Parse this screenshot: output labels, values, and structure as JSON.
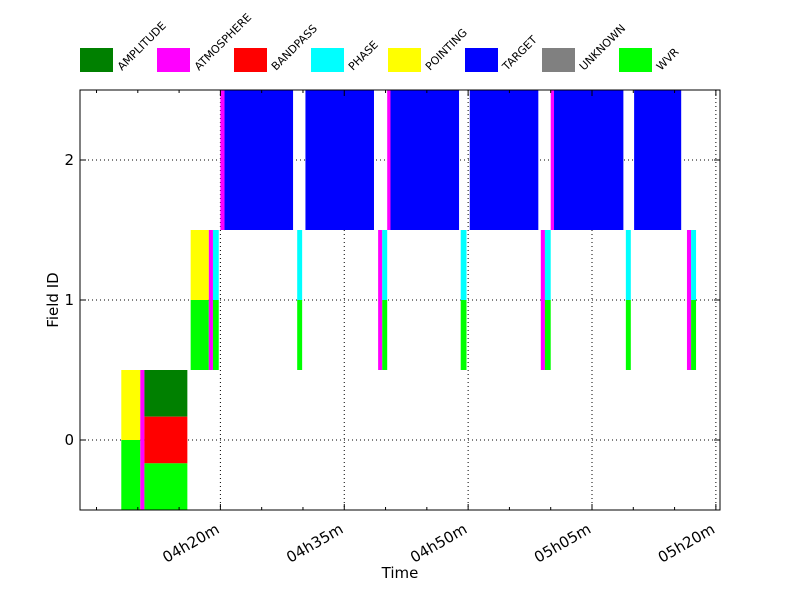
{
  "chart_data": {
    "type": "timeline",
    "xlabel": "Time",
    "ylabel": "Field ID",
    "x_unit": "minutes after 04h00m (UTC)",
    "xlim": [
      3.0,
      80.5
    ],
    "ylim": [
      -0.5,
      2.5
    ],
    "x_ticks": [
      {
        "value": 20,
        "label": "04h20m"
      },
      {
        "value": 35,
        "label": "04h35m"
      },
      {
        "value": 50,
        "label": "04h50m"
      },
      {
        "value": 65,
        "label": "05h05m"
      },
      {
        "value": 80,
        "label": "05h20m"
      }
    ],
    "y_ticks": [
      {
        "value": 0,
        "label": "0"
      },
      {
        "value": 1,
        "label": "1"
      },
      {
        "value": 2,
        "label": "2"
      }
    ],
    "grid": true,
    "legend_position": "top",
    "intents": [
      {
        "name": "AMPLITUDE",
        "color": "#008000"
      },
      {
        "name": "ATMOSPHERE",
        "color": "#ff00ff"
      },
      {
        "name": "BANDPASS",
        "color": "#ff0000"
      },
      {
        "name": "PHASE",
        "color": "#00ffff"
      },
      {
        "name": "POINTING",
        "color": "#ffff00"
      },
      {
        "name": "TARGET",
        "color": "#0000ff"
      },
      {
        "name": "UNKNOWN",
        "color": "#808080"
      },
      {
        "name": "WVR",
        "color": "#00ff00"
      }
    ],
    "scans": [
      {
        "field": 0,
        "start": 8.0,
        "end": 10.3,
        "intents": [
          "POINTING",
          "WVR"
        ]
      },
      {
        "field": 0,
        "start": 10.3,
        "end": 10.8,
        "intents": [
          "ATMOSPHERE"
        ]
      },
      {
        "field": 0,
        "start": 10.8,
        "end": 16.0,
        "intents": [
          "AMPLITUDE",
          "BANDPASS",
          "WVR"
        ]
      },
      {
        "field": 1,
        "start": 16.4,
        "end": 18.6,
        "intents": [
          "POINTING",
          "WVR"
        ]
      },
      {
        "field": 1,
        "start": 18.6,
        "end": 19.1,
        "intents": [
          "ATMOSPHERE"
        ]
      },
      {
        "field": 1,
        "start": 19.1,
        "end": 19.8,
        "intents": [
          "PHASE",
          "WVR"
        ]
      },
      {
        "field": 2,
        "start": 20.0,
        "end": 20.5,
        "intents": [
          "ATMOSPHERE"
        ]
      },
      {
        "field": 2,
        "start": 20.5,
        "end": 28.8,
        "intents": [
          "TARGET"
        ]
      },
      {
        "field": 1,
        "start": 29.3,
        "end": 29.9,
        "intents": [
          "PHASE",
          "WVR"
        ]
      },
      {
        "field": 2,
        "start": 30.3,
        "end": 38.6,
        "intents": [
          "TARGET"
        ]
      },
      {
        "field": 1,
        "start": 39.1,
        "end": 39.6,
        "intents": [
          "ATMOSPHERE"
        ]
      },
      {
        "field": 1,
        "start": 39.6,
        "end": 40.2,
        "intents": [
          "PHASE",
          "WVR"
        ]
      },
      {
        "field": 2,
        "start": 40.2,
        "end": 40.6,
        "intents": [
          "ATMOSPHERE"
        ]
      },
      {
        "field": 2,
        "start": 40.6,
        "end": 48.9,
        "intents": [
          "TARGET"
        ]
      },
      {
        "field": 1,
        "start": 49.1,
        "end": 49.8,
        "intents": [
          "PHASE",
          "WVR"
        ]
      },
      {
        "field": 2,
        "start": 50.2,
        "end": 58.5,
        "intents": [
          "TARGET"
        ]
      },
      {
        "field": 1,
        "start": 58.8,
        "end": 59.3,
        "intents": [
          "ATMOSPHERE"
        ]
      },
      {
        "field": 1,
        "start": 59.3,
        "end": 60.0,
        "intents": [
          "PHASE",
          "WVR"
        ]
      },
      {
        "field": 2,
        "start": 60.0,
        "end": 60.4,
        "intents": [
          "ATMOSPHERE"
        ]
      },
      {
        "field": 2,
        "start": 60.4,
        "end": 68.8,
        "intents": [
          "TARGET"
        ]
      },
      {
        "field": 1,
        "start": 69.1,
        "end": 69.7,
        "intents": [
          "PHASE",
          "WVR"
        ]
      },
      {
        "field": 2,
        "start": 70.1,
        "end": 75.8,
        "intents": [
          "TARGET"
        ]
      },
      {
        "field": 1,
        "start": 76.5,
        "end": 77.0,
        "intents": [
          "ATMOSPHERE"
        ]
      },
      {
        "field": 1,
        "start": 77.0,
        "end": 77.6,
        "intents": [
          "PHASE",
          "WVR"
        ]
      }
    ]
  }
}
